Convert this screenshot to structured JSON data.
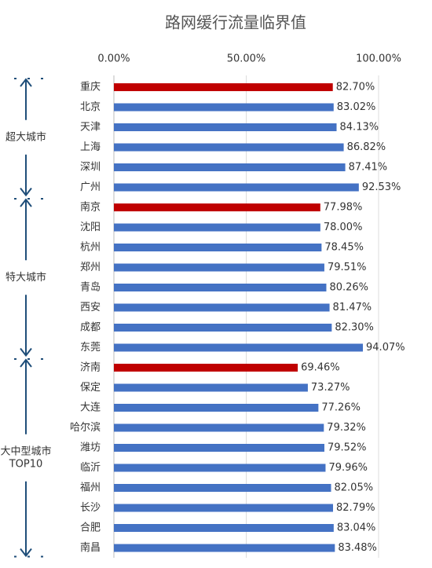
{
  "chart_data": {
    "type": "bar",
    "orientation": "horizontal",
    "title": "路网缓行流量临界值",
    "categories": [
      "重庆",
      "北京",
      "天津",
      "上海",
      "深圳",
      "广州",
      "南京",
      "沈阳",
      "杭州",
      "郑州",
      "青岛",
      "西安",
      "成都",
      "东莞",
      "济南",
      "保定",
      "大连",
      "哈尔滨",
      "潍坊",
      "临沂",
      "福州",
      "长沙",
      "合肥",
      "南昌"
    ],
    "values": [
      82.7,
      83.02,
      84.13,
      86.82,
      87.41,
      92.53,
      77.98,
      78.0,
      78.45,
      79.51,
      80.26,
      81.47,
      82.3,
      94.07,
      69.46,
      73.27,
      77.26,
      79.32,
      79.52,
      79.96,
      82.05,
      82.79,
      83.04,
      83.48
    ],
    "value_labels": [
      "82.70%",
      "83.02%",
      "84.13%",
      "86.82%",
      "87.41%",
      "92.53%",
      "77.98%",
      "78.00%",
      "78.45%",
      "79.51%",
      "80.26%",
      "81.47%",
      "82.30%",
      "94.07%",
      "69.46%",
      "73.27%",
      "77.26%",
      "79.32%",
      "79.52%",
      "79.96%",
      "82.05%",
      "82.79%",
      "83.04%",
      "83.48%"
    ],
    "colors": [
      "#c00000",
      "#4472c4",
      "#4472c4",
      "#4472c4",
      "#4472c4",
      "#4472c4",
      "#c00000",
      "#4472c4",
      "#4472c4",
      "#4472c4",
      "#4472c4",
      "#4472c4",
      "#4472c4",
      "#4472c4",
      "#c00000",
      "#4472c4",
      "#4472c4",
      "#4472c4",
      "#4472c4",
      "#4472c4",
      "#4472c4",
      "#4472c4",
      "#4472c4",
      "#4472c4"
    ],
    "xlim": [
      0,
      100
    ],
    "xticks": [
      {
        "value": 0,
        "label": "0.00%"
      },
      {
        "value": 50,
        "label": "50.00%"
      },
      {
        "value": 100,
        "label": "100.00%"
      }
    ],
    "grid": true,
    "groups": [
      {
        "label": [
          "超大城市"
        ]
      },
      {
        "label": [
          "特大城市"
        ]
      },
      {
        "label": [
          "大中型城市",
          "TOP10"
        ]
      }
    ]
  }
}
